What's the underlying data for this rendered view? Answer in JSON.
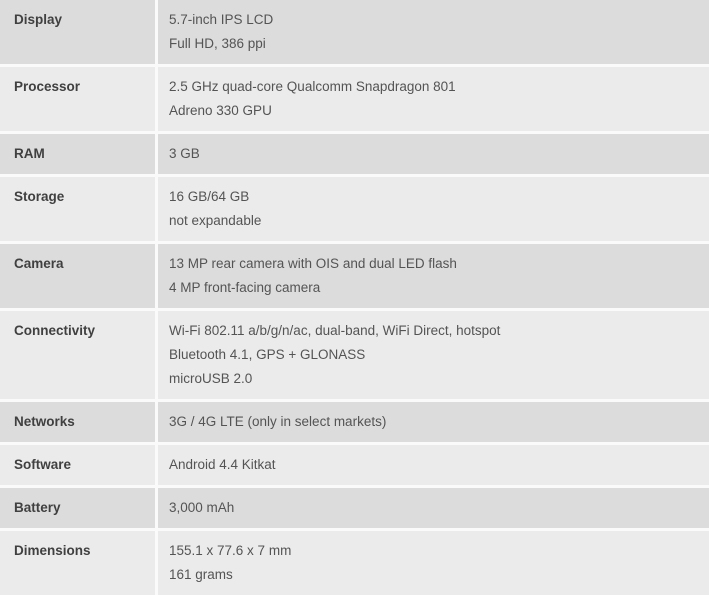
{
  "table": {
    "name": "phone-specifications",
    "colors": {
      "row_dark": "#dcdcdc",
      "row_light": "#ebebeb",
      "divider": "#fafafa",
      "label_text": "#404040",
      "value_text": "#545454"
    },
    "rows": [
      {
        "label": "Display",
        "values": [
          "5.7-inch IPS LCD",
          "Full HD, 386 ppi"
        ]
      },
      {
        "label": "Processor",
        "values": [
          "2.5 GHz quad-core Qualcomm Snapdragon 801",
          "Adreno 330 GPU"
        ]
      },
      {
        "label": "RAM",
        "values": [
          "3 GB"
        ]
      },
      {
        "label": "Storage",
        "values": [
          "16 GB/64 GB",
          "not expandable"
        ]
      },
      {
        "label": "Camera",
        "values": [
          "13 MP rear camera with OIS and dual LED flash",
          "4 MP front-facing camera"
        ]
      },
      {
        "label": "Connectivity",
        "values": [
          "Wi-Fi 802.11 a/b/g/n/ac, dual-band, WiFi Direct, hotspot",
          "Bluetooth 4.1, GPS + GLONASS",
          "microUSB 2.0"
        ]
      },
      {
        "label": "Networks",
        "values": [
          "3G / 4G LTE (only in select markets)"
        ]
      },
      {
        "label": "Software",
        "values": [
          "Android 4.4 Kitkat"
        ]
      },
      {
        "label": "Battery",
        "values": [
          "3,000 mAh"
        ]
      },
      {
        "label": "Dimensions",
        "values": [
          "155.1 x 77.6 x 7 mm",
          "161 grams"
        ]
      }
    ]
  }
}
